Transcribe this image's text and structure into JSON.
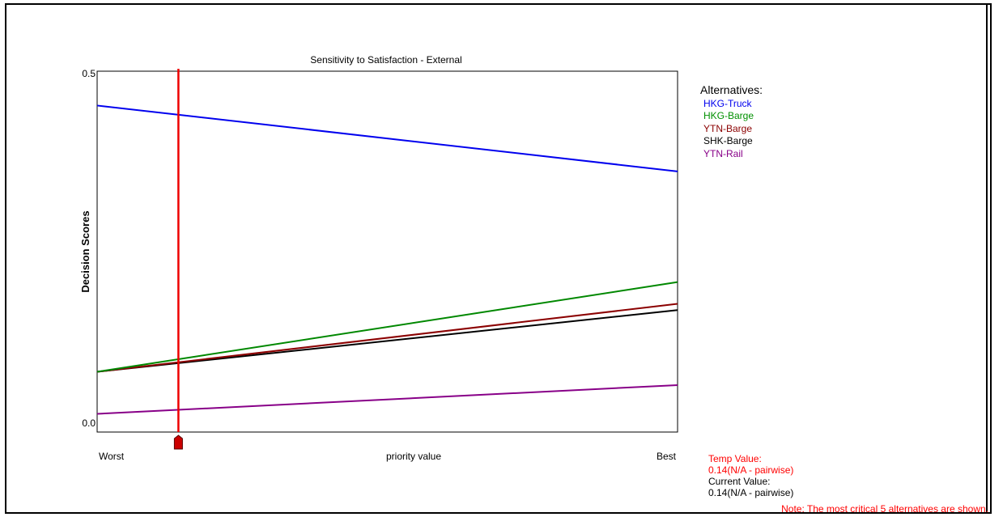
{
  "chart_data": {
    "type": "line",
    "title": "Sensitivity to Satisfaction - External",
    "xlabel": "priority value",
    "ylabel": "Decision Scores",
    "x_tick_labels": [
      "Worst",
      "Best"
    ],
    "y_tick_labels": [
      "0.5",
      "0.0"
    ],
    "xlim": [
      0,
      1
    ],
    "ylim": [
      0,
      0.5
    ],
    "grid": false,
    "legend_title": "Alternatives:",
    "legend_position": "right",
    "series": [
      {
        "name": "HKG-Truck",
        "color": "#0000ee",
        "values": [
          0.451,
          0.357
        ]
      },
      {
        "name": "HKG-Barge",
        "color": "#008800",
        "values": [
          0.071,
          0.199
        ]
      },
      {
        "name": "YTN-Barge",
        "color": "#8b0000",
        "values": [
          0.071,
          0.168
        ]
      },
      {
        "name": "SHK-Barge",
        "color": "#000000",
        "values": [
          0.071,
          0.159
        ]
      },
      {
        "name": "YTN-Rail",
        "color": "#880088",
        "values": [
          0.011,
          0.052
        ]
      }
    ],
    "x": [
      0,
      1
    ],
    "marker": {
      "x": 0.14,
      "color": "#ee0000"
    }
  },
  "readout": {
    "temp_label": "Temp Value:",
    "temp_value": "0.14(N/A - pairwise)",
    "current_label": "Current Value:",
    "current_value": "0.14(N/A - pairwise)"
  },
  "note": "Note: The most critical 5 alternatives are shown.",
  "colors": {
    "temp": "#ff0000",
    "current": "#000000",
    "axis": "#000000"
  }
}
